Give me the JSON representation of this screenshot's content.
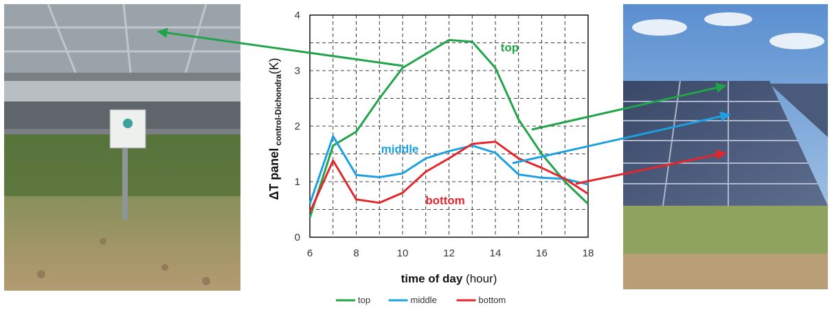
{
  "chart_data": {
    "type": "line",
    "xlabel": "time of day",
    "xlabel_unit": "(hour)",
    "ylabel_main": "ΔT panel",
    "ylabel_sub": "control-Dichondra",
    "ylabel_unit": "(K)",
    "xlim": [
      6,
      18
    ],
    "ylim": [
      0,
      4
    ],
    "xticks": [
      6,
      8,
      10,
      12,
      14,
      16,
      18
    ],
    "yticks": [
      0,
      1,
      2,
      3,
      4
    ],
    "grid": true,
    "legend_position": "bottom",
    "series": [
      {
        "name": "top",
        "color": "#21a34a",
        "x": [
          6,
          7,
          8,
          9,
          10,
          11,
          12,
          13,
          14,
          15,
          16,
          17,
          18
        ],
        "y": [
          0.35,
          1.65,
          1.9,
          2.5,
          3.05,
          3.3,
          3.55,
          3.52,
          3.05,
          2.12,
          1.5,
          1.0,
          0.6
        ]
      },
      {
        "name": "middle",
        "color": "#1ba1e2",
        "x": [
          6,
          7,
          8,
          9,
          10,
          11,
          12,
          13,
          14,
          15,
          16,
          17,
          18
        ],
        "y": [
          0.6,
          1.82,
          1.12,
          1.08,
          1.15,
          1.42,
          1.55,
          1.65,
          1.52,
          1.13,
          1.07,
          1.05,
          0.95
        ]
      },
      {
        "name": "bottom",
        "color": "#e3262b",
        "x": [
          6,
          7,
          8,
          9,
          10,
          11,
          12,
          13,
          14,
          15,
          16,
          17,
          18
        ],
        "y": [
          0.45,
          1.38,
          0.68,
          0.62,
          0.8,
          1.18,
          1.42,
          1.68,
          1.72,
          1.42,
          1.25,
          1.05,
          0.78
        ]
      }
    ],
    "annotations": [
      {
        "text": "top",
        "color": "#21a34a"
      },
      {
        "text": "middle",
        "color": "#1ba1e2"
      },
      {
        "text": "bottom",
        "color": "#e3262b"
      }
    ]
  },
  "photos": {
    "left": {
      "icon": "sensor-under-panel-photo"
    },
    "right": {
      "icon": "solar-array-photo"
    }
  }
}
